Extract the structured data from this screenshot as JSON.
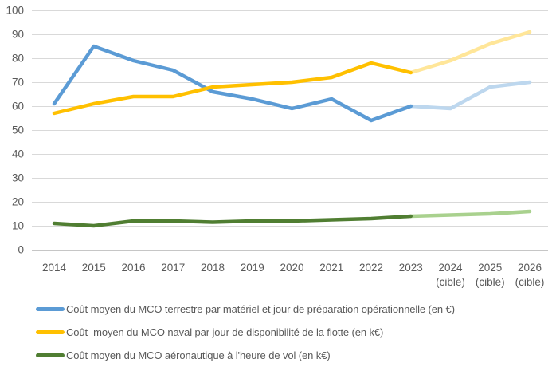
{
  "chart_data": {
    "type": "line",
    "title": "",
    "xlabel": "",
    "ylabel": "",
    "categories": [
      "2014",
      "2015",
      "2016",
      "2017",
      "2018",
      "2019",
      "2020",
      "2021",
      "2022",
      "2023",
      "2024",
      "2025",
      "2026"
    ],
    "cible_suffix": "(cible)",
    "cible_from_index": 10,
    "solid_until_index": 9,
    "y_ticks": [
      "100",
      "90",
      "80",
      "70",
      "60",
      "50",
      "40",
      "30",
      "20",
      "10",
      "0"
    ],
    "ylim": [
      0,
      100
    ],
    "ytick_step": 10,
    "grid": true,
    "legend_position": "bottom-left",
    "series": [
      {
        "name": "mco-terrestre",
        "legend": "Coût moyen du MCO terrestre par matériel et jour de préparation opérationnelle (en €)",
        "color": "#5B9BD5",
        "cible_color": "#BDD7EE",
        "values": [
          61,
          85,
          79,
          75,
          66,
          63,
          59,
          63,
          54,
          60,
          59,
          68,
          70
        ]
      },
      {
        "name": "mco-naval",
        "legend": "Coût  moyen du MCO naval par jour de disponibilité de la flotte (en k€)",
        "color": "#FFC000",
        "cible_color": "#FFE699",
        "values": [
          57,
          61,
          64,
          64,
          68,
          69,
          70,
          72,
          78,
          74,
          79,
          86,
          91
        ]
      },
      {
        "name": "mco-aeronautique",
        "legend": "Coût moyen du MCO aéronautique à l'heure de vol (en k€)",
        "color": "#507E32",
        "cible_color": "#A9D18E",
        "values": [
          11,
          10,
          12,
          12,
          11.5,
          12,
          12,
          12.5,
          13,
          14,
          14.5,
          15,
          16
        ]
      }
    ],
    "colors": {
      "gridline": "#D9D9D9",
      "axis_line": "#C6C6C6",
      "tick_text": "#595959",
      "legend_text": "#595959"
    }
  }
}
